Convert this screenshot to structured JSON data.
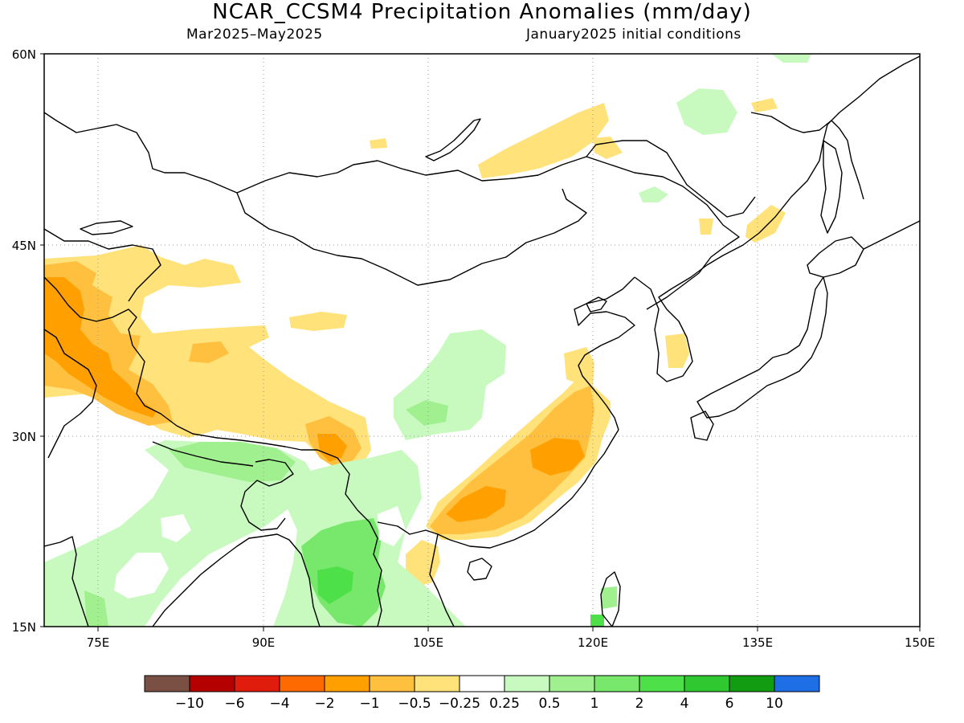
{
  "title": "NCAR_CCSM4 Precipitation Anomalies (mm/day)",
  "subtitle_left": "Mar2025–May2025",
  "subtitle_right": "January2025 initial conditions",
  "lat_ticks": [
    "60N",
    "45N",
    "30N",
    "15N"
  ],
  "lon_ticks": [
    "75E",
    "90E",
    "105E",
    "120E",
    "135E",
    "150E"
  ],
  "colorbar": {
    "colors": [
      "#7a5045",
      "#b50000",
      "#e01c0c",
      "#ff6a00",
      "#ffa000",
      "#ffc040",
      "#ffe27a",
      "#ffffff",
      "#c8fac0",
      "#a0f090",
      "#78e86c",
      "#4ee048",
      "#30c830",
      "#129c12",
      "#1e6ee6"
    ],
    "labels": [
      "−10",
      "−6",
      "−4",
      "−2",
      "−1",
      "−0.5",
      "−0.25",
      "0.25",
      "0.5",
      "1",
      "2",
      "4",
      "6",
      "10"
    ]
  },
  "anomaly_colors": {
    "orange": "#ffa000",
    "light_orange": "#ffc040",
    "yellow": "#ffe27a",
    "pale_green": "#c8fac0",
    "light_green": "#a0f090",
    "green": "#78e86c",
    "bright_green": "#4ee048"
  }
}
